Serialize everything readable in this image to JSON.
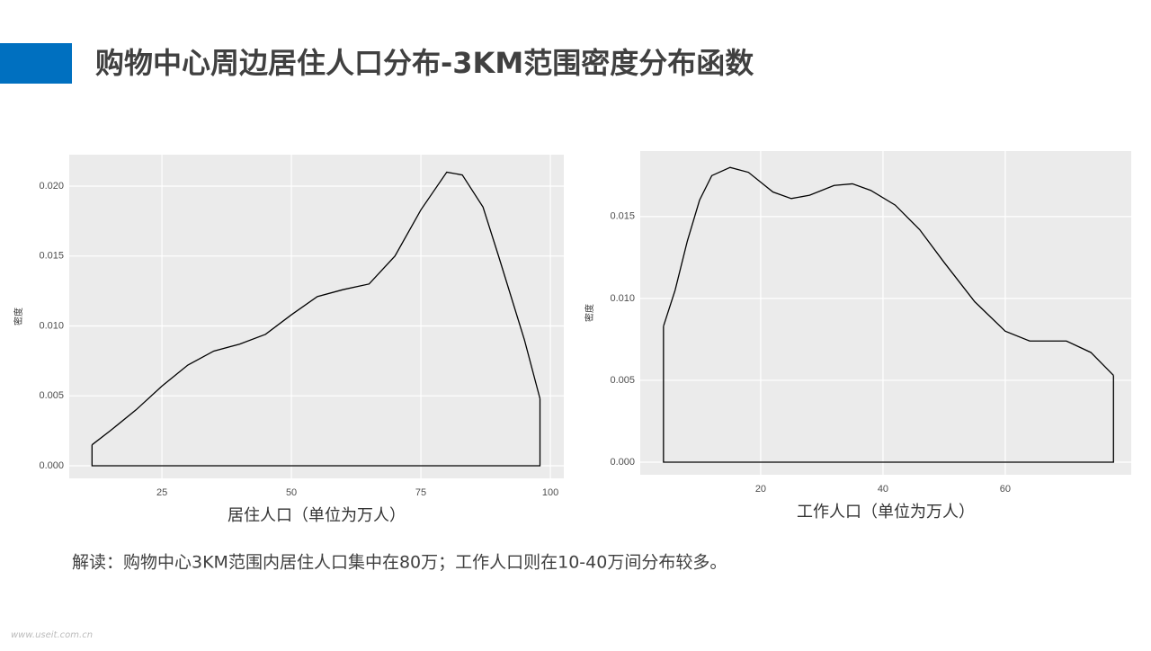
{
  "header": {
    "title": "购物中心周边居住人口分布-3KM范围密度分布函数"
  },
  "note": "解读：购物中心3KM范围内居住人口集中在80万；工作人口则在10-40万间分布较多。",
  "watermark": "www.useit.com.cn",
  "chart_data": [
    {
      "type": "density",
      "xlabel": "居住人口（单位为万人）",
      "ylabel": "密度",
      "x": [
        11.5,
        15,
        20,
        25,
        30,
        35,
        40,
        45,
        50,
        55,
        60,
        65,
        70,
        75,
        80,
        83,
        87,
        90,
        95,
        98
      ],
      "values": [
        0.0015,
        0.0025,
        0.004,
        0.0057,
        0.0072,
        0.0082,
        0.0087,
        0.0094,
        0.0108,
        0.0121,
        0.0126,
        0.013,
        0.015,
        0.0183,
        0.021,
        0.0208,
        0.0185,
        0.015,
        0.009,
        0.0048
      ],
      "color": "#000000",
      "xlim": [
        7.1,
        102.6
      ],
      "ylim": [
        -0.0009,
        0.02225
      ],
      "xticks": [
        25,
        50,
        75,
        100
      ],
      "yticks": [
        {
          "value": 0,
          "label": "0.000"
        },
        {
          "value": 0.005,
          "label": "0.005"
        },
        {
          "value": 0.01,
          "label": "0.010"
        },
        {
          "value": 0.015,
          "label": "0.015"
        },
        {
          "value": 0.02,
          "label": "0.020"
        }
      ],
      "grid": true
    },
    {
      "type": "density",
      "xlabel": "工作人口（单位为万人）",
      "ylabel": "密度",
      "x": [
        4.1,
        6,
        8,
        10,
        12,
        15,
        18,
        22,
        25,
        28,
        32,
        35,
        38,
        42,
        46,
        50,
        55,
        60,
        64,
        70,
        74,
        77.7
      ],
      "values": [
        0.0083,
        0.0105,
        0.0135,
        0.016,
        0.0175,
        0.018,
        0.0177,
        0.0165,
        0.0161,
        0.0163,
        0.0169,
        0.017,
        0.0166,
        0.0157,
        0.0142,
        0.0122,
        0.0098,
        0.008,
        0.0074,
        0.0074,
        0.0067,
        0.0053
      ],
      "color": "#000000",
      "xlim": [
        0.3,
        80.6
      ],
      "ylim": [
        -0.00077,
        0.019
      ],
      "xticks": [
        20,
        40,
        60
      ],
      "yticks": [
        {
          "value": 0,
          "label": "0.000"
        },
        {
          "value": 0.005,
          "label": "0.005"
        },
        {
          "value": 0.01,
          "label": "0.010"
        },
        {
          "value": 0.015,
          "label": "0.015"
        }
      ],
      "grid": true
    }
  ]
}
